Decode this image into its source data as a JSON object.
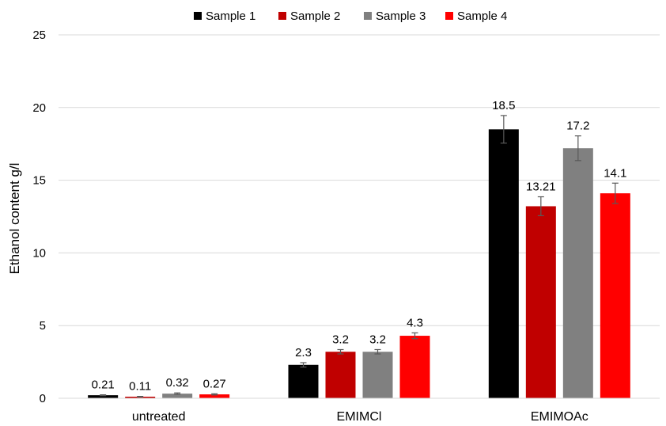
{
  "chart_data": {
    "type": "bar",
    "title": "",
    "xlabel": "",
    "ylabel": "Ethanol content g/l",
    "ylim": [
      0,
      25
    ],
    "yticks": [
      0,
      5,
      10,
      15,
      20,
      25
    ],
    "grid": true,
    "legend_position": "top",
    "categories": [
      "untreated",
      "EMIMCl",
      "EMIMOAc"
    ],
    "series": [
      {
        "name": "Sample 1",
        "color": "#000000",
        "values": [
          0.21,
          2.3,
          18.5
        ],
        "errors": [
          0.03,
          0.15,
          0.95
        ],
        "labels": [
          "0.21",
          "2.3",
          "18.5"
        ]
      },
      {
        "name": "Sample 2",
        "color": "#c00000",
        "values": [
          0.11,
          3.2,
          13.21
        ],
        "errors": [
          0.02,
          0.15,
          0.65
        ],
        "labels": [
          "0.11",
          "3.2",
          "13.21"
        ]
      },
      {
        "name": "Sample 3",
        "color": "#808080",
        "values": [
          0.32,
          3.2,
          17.2
        ],
        "errors": [
          0.05,
          0.15,
          0.85
        ],
        "labels": [
          "0.32",
          "3.2",
          "17.2"
        ]
      },
      {
        "name": "Sample 4",
        "color": "#ff0000",
        "values": [
          0.27,
          4.3,
          14.1
        ],
        "errors": [
          0.04,
          0.2,
          0.7
        ],
        "labels": [
          "0.27",
          "4.3",
          "14.1"
        ]
      }
    ]
  }
}
